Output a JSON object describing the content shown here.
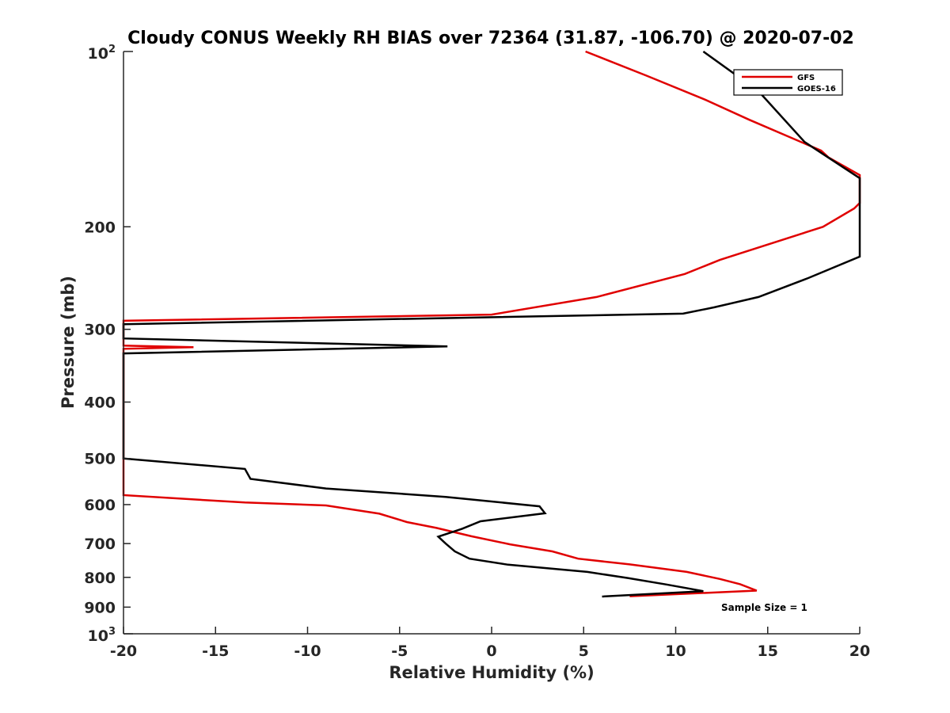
{
  "chart_data": {
    "type": "line",
    "title": "Cloudy CONUS Weekly RH BIAS over 72364 (31.87, -106.70) @ 2020-07-02",
    "xlabel": "Relative Humidity (%)",
    "ylabel": "Pressure (mb)",
    "xlim": [
      -20,
      20
    ],
    "ylim": [
      100,
      1000
    ],
    "yscale": "log",
    "y_reversed": true,
    "grid": false,
    "legend_position": "top-right",
    "x_ticks": [
      -20,
      -15,
      -10,
      -5,
      0,
      5,
      10,
      15,
      20
    ],
    "x_tick_labels": [
      "-20",
      "-15",
      "-10",
      "-5",
      "0",
      "5",
      "10",
      "15",
      "20"
    ],
    "y_ticks": [
      200,
      300,
      400,
      500,
      600,
      700,
      800,
      900
    ],
    "y_tick_labels": [
      "200",
      "300",
      "400",
      "500",
      "600",
      "700",
      "800",
      "900"
    ],
    "y_decade_ticks": [
      {
        "value": 100,
        "base": "10",
        "exp": "2"
      },
      {
        "value": 1000,
        "base": "10",
        "exp": "3"
      }
    ],
    "annotation": "Sample Size = 1",
    "series": [
      {
        "name": "GFS",
        "color": "#e00000",
        "points": [
          [
            5.1,
            100
          ],
          [
            8.4,
            110
          ],
          [
            11.6,
            121
          ],
          [
            14.0,
            131
          ],
          [
            17.9,
            148
          ],
          [
            18.3,
            152
          ],
          [
            20.0,
            163
          ],
          [
            20.0,
            182
          ],
          [
            19.7,
            186
          ],
          [
            18.0,
            200
          ],
          [
            12.4,
            228
          ],
          [
            10.5,
            241
          ],
          [
            5.7,
            264
          ],
          [
            0.0,
            283
          ],
          [
            -20.0,
            290
          ],
          [
            -20.0,
            320
          ],
          [
            -16.2,
            322
          ],
          [
            -20.0,
            324
          ],
          [
            -20.0,
            578
          ],
          [
            -13.4,
            595
          ],
          [
            -9.0,
            602
          ],
          [
            -6.1,
            622
          ],
          [
            -4.6,
            643
          ],
          [
            -3.0,
            658
          ],
          [
            -1.1,
            680
          ],
          [
            1.0,
            702
          ],
          [
            3.3,
            722
          ],
          [
            4.7,
            743
          ],
          [
            7.5,
            760
          ],
          [
            10.6,
            783
          ],
          [
            12.4,
            805
          ],
          [
            13.5,
            822
          ],
          [
            14.4,
            843
          ],
          [
            7.5,
            862
          ]
        ]
      },
      {
        "name": "GOES-16",
        "color": "#000000",
        "points": [
          [
            11.5,
            100
          ],
          [
            14.5,
            117
          ],
          [
            17.0,
            143
          ],
          [
            20.0,
            165
          ],
          [
            20.0,
            225
          ],
          [
            17.2,
            245
          ],
          [
            14.5,
            264
          ],
          [
            12.1,
            275
          ],
          [
            10.4,
            282
          ],
          [
            -20.0,
            294
          ],
          [
            -20.0,
            311
          ],
          [
            -2.4,
            321
          ],
          [
            -20.0,
            330
          ],
          [
            -20.0,
            500
          ],
          [
            -13.4,
            521
          ],
          [
            -13.1,
            542
          ],
          [
            -9.0,
            563
          ],
          [
            -2.5,
            582
          ],
          [
            2.6,
            604
          ],
          [
            2.9,
            621
          ],
          [
            -0.6,
            641
          ],
          [
            -1.6,
            660
          ],
          [
            -2.9,
            681
          ],
          [
            -2.5,
            700
          ],
          [
            -2.0,
            722
          ],
          [
            -1.2,
            743
          ],
          [
            0.9,
            761
          ],
          [
            5.2,
            783
          ],
          [
            7.4,
            802
          ],
          [
            9.5,
            823
          ],
          [
            11.5,
            845
          ],
          [
            6.0,
            863
          ]
        ]
      }
    ]
  }
}
